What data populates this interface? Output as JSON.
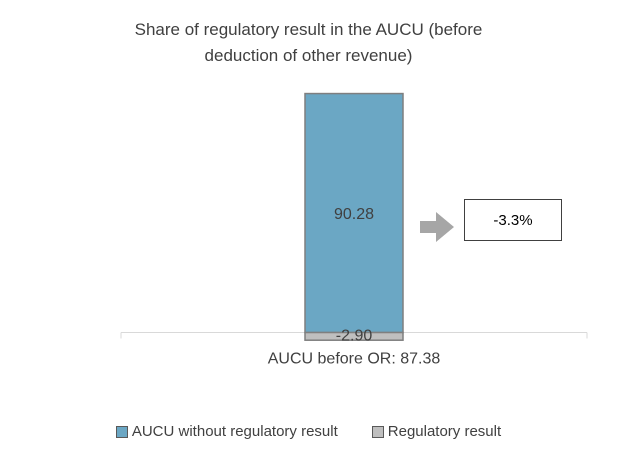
{
  "chart_data": {
    "type": "bar",
    "title_lines": [
      "Share of regulatory result in the AUCU (before",
      "deduction of other revenue)"
    ],
    "category_label": "AUCU before OR:",
    "category_value": "87.38",
    "series": [
      {
        "name": "AUCU without regulatory result",
        "value": 90.28,
        "label": "90.28",
        "color": "#6ba7c4"
      },
      {
        "name": "Regulatory result",
        "value": -2.9,
        "label": "-2.90",
        "color": "#bfbfbf"
      }
    ],
    "ylim": [
      -3.2,
      92
    ],
    "callout": "-3.3%",
    "grid": false,
    "legend_position": "bottom"
  }
}
